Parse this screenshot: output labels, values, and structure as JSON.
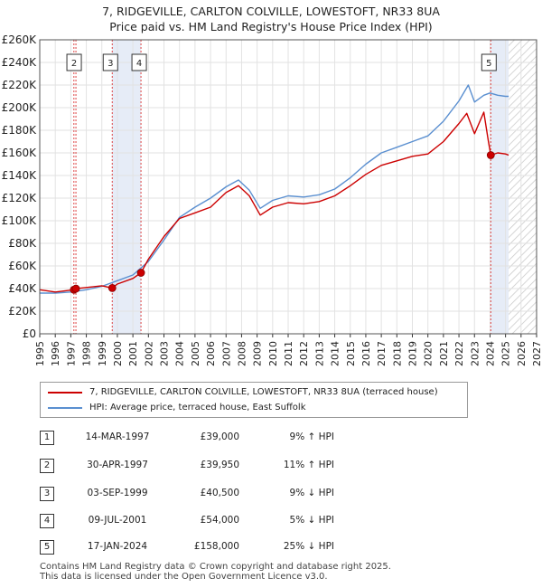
{
  "title_line1": "7, RIDGEVILLE, CARLTON COLVILLE, LOWESTOFT, NR33 8UA",
  "title_line2": "Price paid vs. HM Land Registry's House Price Index (HPI)",
  "colors": {
    "property": "#cc0000",
    "hpi": "#5a8fd0",
    "shade": "#e6ecf7",
    "hatch": "#c8c8c8",
    "vline": "#dd4444"
  },
  "legend": {
    "property": "7, RIDGEVILLE, CARLTON COLVILLE, LOWESTOFT, NR33 8UA (terraced house)",
    "hpi": "HPI: Average price, terraced house, East Suffolk"
  },
  "sales": [
    {
      "num": "1",
      "date": "14-MAR-1997",
      "price": "£39,000",
      "hpi": "9% ↑ HPI",
      "year": 1997.2,
      "value": 39000
    },
    {
      "num": "2",
      "date": "30-APR-1997",
      "price": "£39,950",
      "hpi": "11% ↑ HPI",
      "year": 1997.33,
      "value": 39950
    },
    {
      "num": "3",
      "date": "03-SEP-1999",
      "price": "£40,500",
      "hpi": "9% ↓ HPI",
      "year": 1999.67,
      "value": 40500
    },
    {
      "num": "4",
      "date": "09-JUL-2001",
      "price": "£54,000",
      "hpi": "5% ↓ HPI",
      "year": 2001.52,
      "value": 54000
    },
    {
      "num": "5",
      "date": "17-JAN-2024",
      "price": "£158,000",
      "hpi": "25% ↓ HPI",
      "year": 2024.05,
      "value": 158000
    }
  ],
  "footer_line1": "Contains HM Land Registry data © Crown copyright and database right 2025.",
  "footer_line2": "This data is licensed under the Open Government Licence v3.0.",
  "chart_data": {
    "type": "line",
    "title": "Price paid vs. HM Land Registry's House Price Index (HPI)",
    "xlim": [
      1995,
      2027
    ],
    "ylim": [
      0,
      260000
    ],
    "x_ticks": [
      "1995",
      "1996",
      "1997",
      "1998",
      "1999",
      "2000",
      "2001",
      "2002",
      "2003",
      "2004",
      "2005",
      "2006",
      "2007",
      "2008",
      "2009",
      "2010",
      "2011",
      "2012",
      "2013",
      "2014",
      "2015",
      "2016",
      "2017",
      "2018",
      "2019",
      "2020",
      "2021",
      "2022",
      "2023",
      "2024",
      "2025",
      "2026",
      "2027"
    ],
    "y_ticks": [
      "£0",
      "£20K",
      "£40K",
      "£60K",
      "£80K",
      "£100K",
      "£120K",
      "£140K",
      "£160K",
      "£180K",
      "£200K",
      "£220K",
      "£240K",
      "£260K"
    ],
    "grid": true,
    "shaded_periods": [
      [
        1999.67,
        2001.52
      ],
      [
        2024.05,
        2025.2
      ]
    ],
    "hatched_from": 2025.2,
    "series": [
      {
        "name": "7, RIDGEVILLE, CARLTON COLVILLE, LOWESTOFT, NR33 8UA (terraced house)",
        "x": [
          1995,
          1996,
          1997.2,
          1997.33,
          1998,
          1999,
          1999.67,
          2000,
          2001,
          2001.52,
          2002,
          2003,
          2004,
          2005,
          2006,
          2007,
          2007.8,
          2008.5,
          2009.2,
          2010,
          2011,
          2012,
          2013,
          2014,
          2015,
          2016,
          2017,
          2018,
          2019,
          2020,
          2021,
          2022,
          2022.5,
          2023,
          2023.6,
          2023.9,
          2024.05,
          2024.5,
          2025,
          2025.2
        ],
        "values": [
          39000,
          37000,
          39000,
          39950,
          41000,
          42500,
          40500,
          44000,
          49000,
          54000,
          66000,
          86000,
          102000,
          107000,
          112000,
          125000,
          131000,
          122000,
          105000,
          112000,
          116000,
          115000,
          117000,
          122000,
          131000,
          141000,
          149000,
          153000,
          157000,
          159000,
          170000,
          186000,
          195000,
          177000,
          196000,
          170000,
          158000,
          160000,
          159000,
          158000
        ]
      },
      {
        "name": "HPI: Average price, terraced house, East Suffolk",
        "x": [
          1995,
          1996,
          1997,
          1998,
          1999,
          2000,
          2001,
          2002,
          2003,
          2004,
          2005,
          2006,
          2007,
          2007.8,
          2008.5,
          2009.2,
          2010,
          2011,
          2012,
          2013,
          2014,
          2015,
          2016,
          2017,
          2018,
          2019,
          2020,
          2021,
          2022,
          2022.6,
          2023,
          2023.6,
          2024,
          2024.5,
          2025,
          2025.2
        ],
        "values": [
          36000,
          36000,
          37000,
          39000,
          42000,
          47000,
          52000,
          64000,
          83000,
          103000,
          112000,
          120000,
          130000,
          136000,
          127000,
          111000,
          118000,
          122000,
          121000,
          123000,
          128000,
          138000,
          150000,
          160000,
          165000,
          170000,
          175000,
          188000,
          206000,
          220000,
          205000,
          211000,
          213000,
          211000,
          210000,
          210000
        ]
      }
    ]
  }
}
